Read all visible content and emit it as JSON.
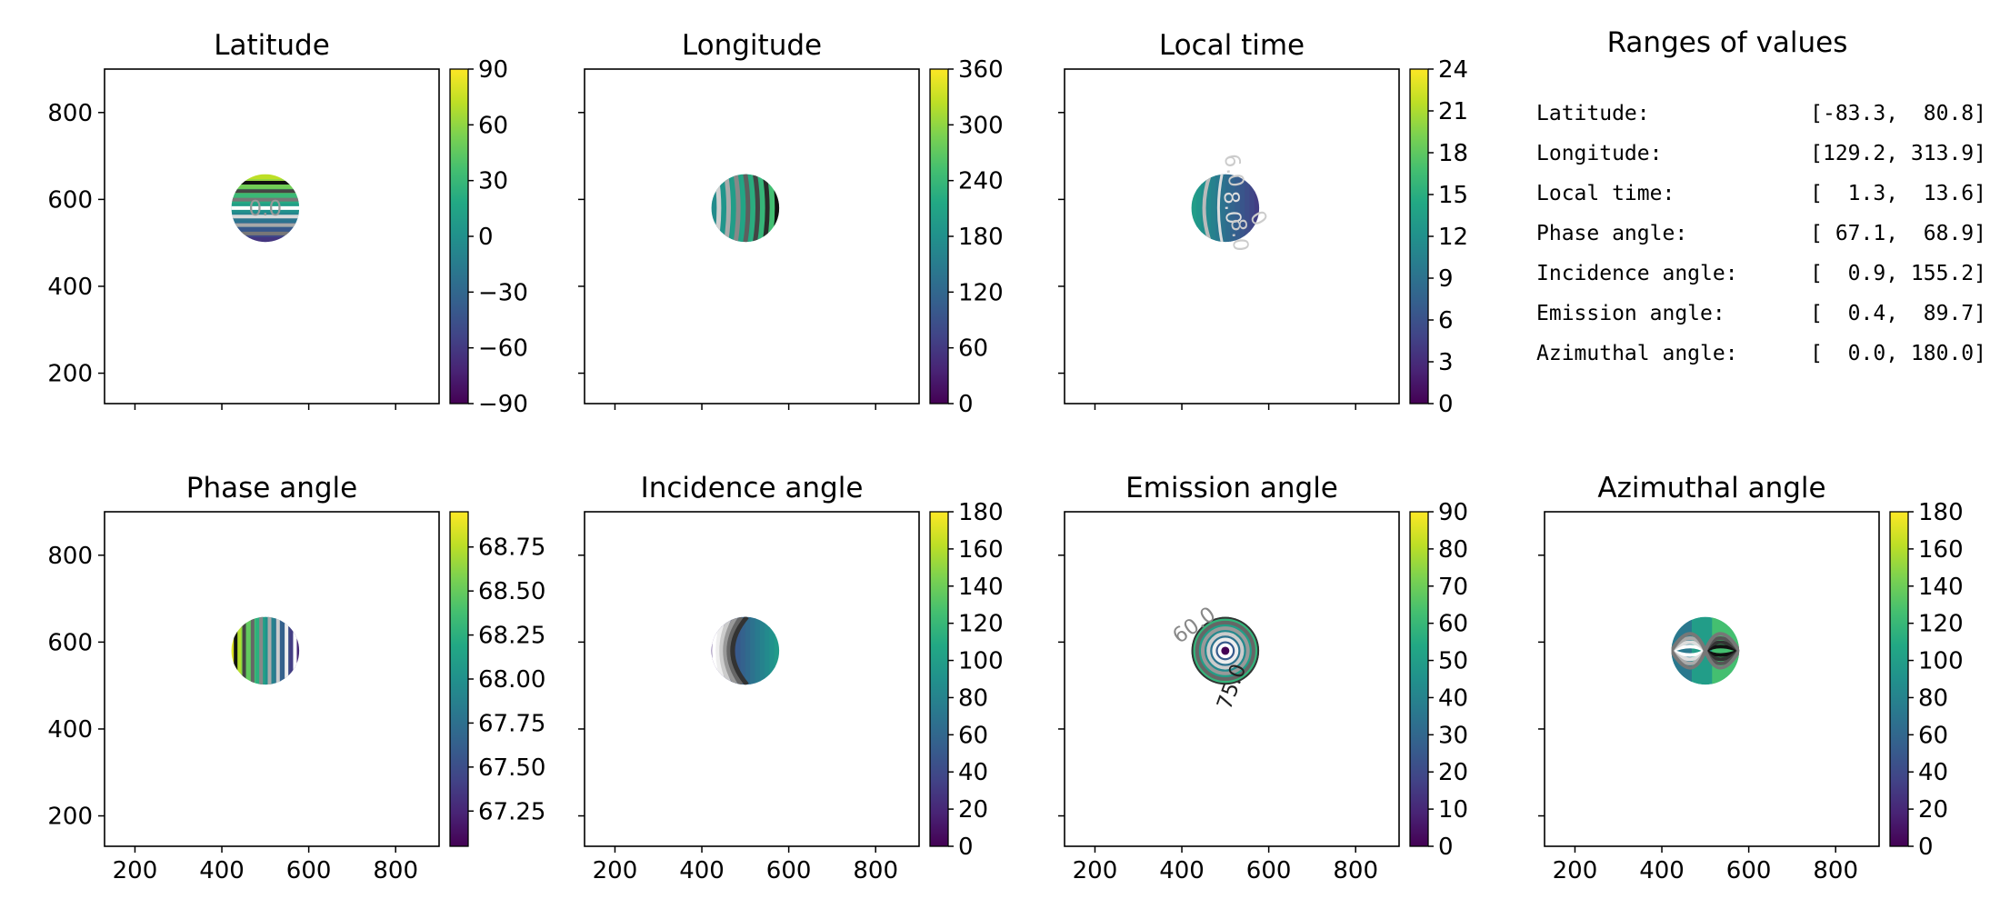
{
  "figure": {
    "panels": [
      {
        "id": "latitude",
        "title": "Latitude",
        "colorbar": {
          "ticks": [
            "90",
            "60",
            "30",
            "0",
            "−30",
            "−60",
            "−90"
          ],
          "range": [
            -90,
            90
          ],
          "values": [
            90,
            60,
            30,
            0,
            -30,
            -60,
            -90
          ]
        },
        "contour_labels": [
          "0.0"
        ],
        "pattern": "horizontal"
      },
      {
        "id": "longitude",
        "title": "Longitude",
        "colorbar": {
          "ticks": [
            "360",
            "300",
            "240",
            "180",
            "120",
            "60",
            "0"
          ],
          "range": [
            0,
            360
          ],
          "values": [
            360,
            300,
            240,
            180,
            120,
            60,
            0
          ]
        },
        "contour_labels": [],
        "pattern": "vertical"
      },
      {
        "id": "local-time",
        "title": "Local time",
        "colorbar": {
          "ticks": [
            "24",
            "21",
            "18",
            "15",
            "12",
            "9",
            "6",
            "3",
            "0"
          ],
          "range": [
            0,
            24
          ],
          "values": [
            24,
            21,
            18,
            15,
            12,
            9,
            6,
            3,
            0
          ]
        },
        "contour_labels": [
          "8.0",
          "6.0",
          "8.0",
          "0"
        ],
        "pattern": "localtime"
      },
      {
        "id": "phase-angle",
        "title": "Phase angle",
        "colorbar": {
          "ticks": [
            "68.75",
            "68.50",
            "68.25",
            "68.00",
            "67.75",
            "67.50",
            "67.25"
          ],
          "range": [
            67.05,
            68.95
          ],
          "values": [
            68.75,
            68.5,
            68.25,
            68.0,
            67.75,
            67.5,
            67.25
          ]
        },
        "contour_labels": [],
        "pattern": "phase"
      },
      {
        "id": "incidence-angle",
        "title": "Incidence angle",
        "colorbar": {
          "ticks": [
            "180",
            "160",
            "140",
            "120",
            "100",
            "80",
            "60",
            "40",
            "20",
            "0"
          ],
          "range": [
            0,
            180
          ],
          "values": [
            180,
            160,
            140,
            120,
            100,
            80,
            60,
            40,
            20,
            0
          ]
        },
        "contour_labels": [],
        "pattern": "incidence"
      },
      {
        "id": "emission-angle",
        "title": "Emission angle",
        "colorbar": {
          "ticks": [
            "90",
            "80",
            "70",
            "60",
            "50",
            "40",
            "30",
            "20",
            "10",
            "0"
          ],
          "range": [
            0,
            90
          ],
          "values": [
            90,
            80,
            70,
            60,
            50,
            40,
            30,
            20,
            10,
            0
          ]
        },
        "contour_labels": [
          "75.0",
          "60.0"
        ],
        "pattern": "emission"
      },
      {
        "id": "azimuthal-angle",
        "title": "Azimuthal angle",
        "colorbar": {
          "ticks": [
            "180",
            "160",
            "140",
            "120",
            "100",
            "80",
            "60",
            "40",
            "20",
            "0"
          ],
          "range": [
            0,
            180
          ],
          "values": [
            180,
            160,
            140,
            120,
            100,
            80,
            60,
            40,
            20,
            0
          ]
        },
        "contour_labels": [],
        "pattern": "azimuth"
      }
    ],
    "x_ticks": [
      "200",
      "400",
      "600",
      "800"
    ],
    "y_ticks": [
      "800",
      "600",
      "400",
      "200"
    ],
    "axis_range": {
      "x": [
        130,
        900
      ],
      "y": [
        130,
        900
      ]
    },
    "disk": {
      "center_x": 500,
      "center_y": 580,
      "radius": 78
    },
    "colormap": "viridis",
    "ranges_panel": {
      "title": "Ranges of values",
      "rows": [
        {
          "label": "Latitude:",
          "value": "[-83.3,  80.8]"
        },
        {
          "label": "Longitude:",
          "value": "[129.2, 313.9]"
        },
        {
          "label": "Local time:",
          "value": "[  1.3,  13.6]"
        },
        {
          "label": "Phase angle:",
          "value": "[ 67.1,  68.9]"
        },
        {
          "label": "Incidence angle:",
          "value": "[  0.9, 155.2]"
        },
        {
          "label": "Emission angle:",
          "value": "[  0.4,  89.7]"
        },
        {
          "label": "Azimuthal angle:",
          "value": "[  0.0, 180.0]"
        }
      ]
    }
  },
  "chart_data": [
    {
      "type": "heatmap",
      "title": "Latitude",
      "xlim": [
        130,
        900
      ],
      "ylim": [
        130,
        900
      ],
      "x_ticks": [
        200,
        400,
        600,
        800
      ],
      "y_ticks": [
        200,
        400,
        600,
        800
      ],
      "colorbar_range": [
        -90,
        90
      ],
      "value_range": [
        -83.3,
        80.8
      ]
    },
    {
      "type": "heatmap",
      "title": "Longitude",
      "xlim": [
        130,
        900
      ],
      "ylim": [
        130,
        900
      ],
      "colorbar_range": [
        0,
        360
      ],
      "value_range": [
        129.2,
        313.9
      ]
    },
    {
      "type": "heatmap",
      "title": "Local time",
      "xlim": [
        130,
        900
      ],
      "ylim": [
        130,
        900
      ],
      "colorbar_range": [
        0,
        24
      ],
      "value_range": [
        1.3,
        13.6
      ]
    },
    {
      "type": "heatmap",
      "title": "Phase angle",
      "xlim": [
        130,
        900
      ],
      "ylim": [
        130,
        900
      ],
      "colorbar_range": [
        67.05,
        68.95
      ],
      "value_range": [
        67.1,
        68.9
      ]
    },
    {
      "type": "heatmap",
      "title": "Incidence angle",
      "xlim": [
        130,
        900
      ],
      "ylim": [
        130,
        900
      ],
      "colorbar_range": [
        0,
        180
      ],
      "value_range": [
        0.9,
        155.2
      ]
    },
    {
      "type": "heatmap",
      "title": "Emission angle",
      "xlim": [
        130,
        900
      ],
      "ylim": [
        130,
        900
      ],
      "colorbar_range": [
        0,
        90
      ],
      "value_range": [
        0.4,
        89.7
      ]
    },
    {
      "type": "heatmap",
      "title": "Azimuthal angle",
      "xlim": [
        130,
        900
      ],
      "ylim": [
        130,
        900
      ],
      "colorbar_range": [
        0,
        180
      ],
      "value_range": [
        0.0,
        180.0
      ]
    }
  ]
}
